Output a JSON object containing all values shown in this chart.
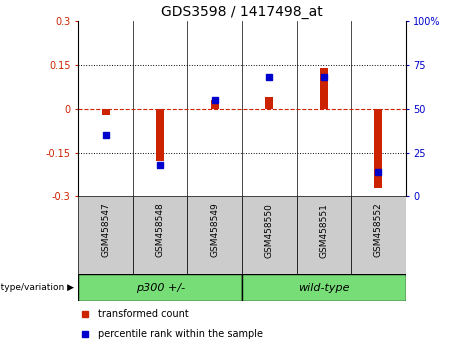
{
  "title": "GDS3598 / 1417498_at",
  "samples": [
    "GSM458547",
    "GSM458548",
    "GSM458549",
    "GSM458550",
    "GSM458551",
    "GSM458552"
  ],
  "red_bars": [
    -0.02,
    -0.18,
    0.03,
    0.04,
    0.14,
    -0.27
  ],
  "blue_squares_pct": [
    35,
    18,
    55,
    68,
    68,
    14
  ],
  "ylim_left": [
    -0.3,
    0.3
  ],
  "ylim_right": [
    0,
    100
  ],
  "yticks_left": [
    -0.3,
    -0.15,
    0,
    0.15,
    0.3
  ],
  "yticks_right": [
    0,
    25,
    50,
    75,
    100
  ],
  "bar_color": "#CC2200",
  "square_color": "#0000CC",
  "zero_line_color": "#CC2200",
  "grid_color": "black",
  "bg_plot": "white",
  "xtick_bg": "#CCCCCC",
  "group_color": "#77DD77",
  "legend_red": "#CC2200",
  "legend_blue": "#0000CC",
  "bar_width": 0.15
}
